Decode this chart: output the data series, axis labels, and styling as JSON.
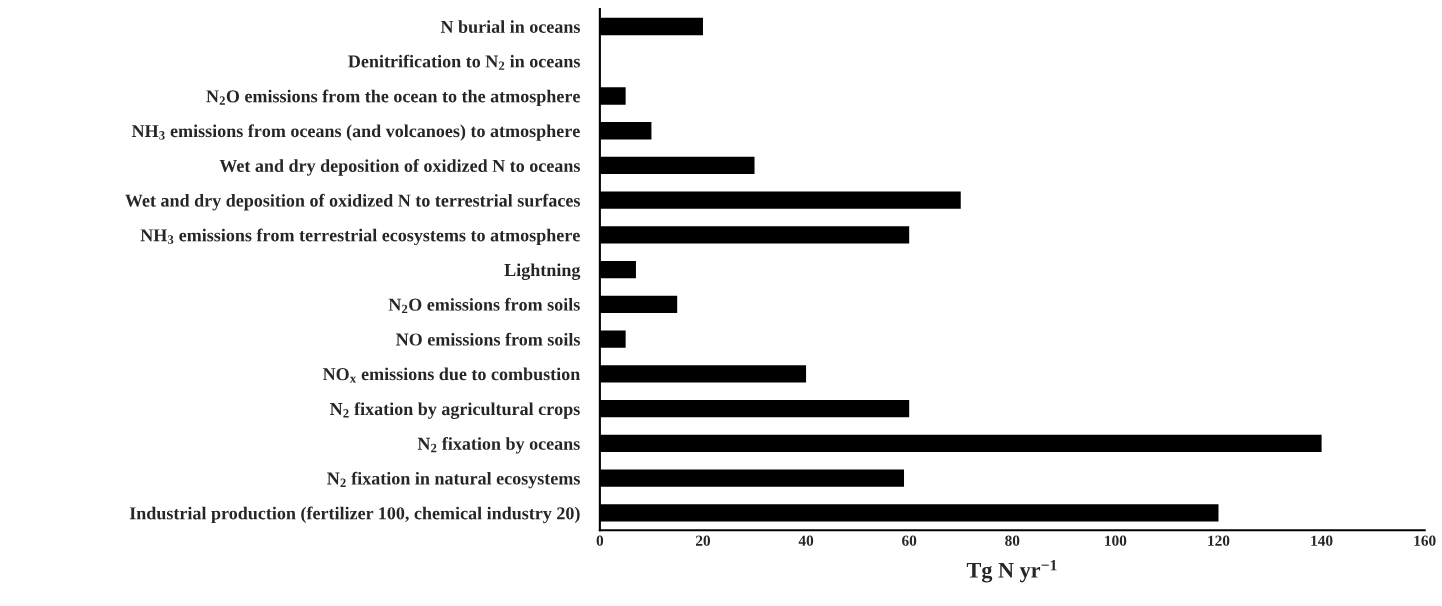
{
  "chart_data": {
    "type": "bar",
    "orientation": "horizontal",
    "xlabel": "Tg N yr$^{−1}$",
    "categories": [
      "N burial in oceans",
      "Denitrification to N$_{2}$ in oceans",
      "N$_{2}$O emissions from the ocean to the atmosphere",
      "NH$_{3}$ emissions from oceans (and volcanoes) to atmosphere",
      "Wet and dry deposition of oxidized N to oceans",
      "Wet and dry deposition of oxidized N to terrestrial surfaces",
      "NH$_{3}$ emissions from terrestrial ecosystems to atmosphere",
      "Lightning",
      "N$_{2}$O emissions from soils",
      "NO emissions from soils",
      "NO$_{x}$ emissions due to combustion",
      "N$_{2}$ fixation by agricultural crops",
      "N$_{2}$ fixation by oceans",
      "N$_{2}$ fixation in natural ecosystems",
      "Industrial production (fertilizer 100, chemical industry 20)"
    ],
    "values": [
      20,
      null,
      5,
      10,
      30,
      70,
      60,
      7,
      15,
      5,
      40,
      60,
      140,
      59,
      120
    ],
    "color": "#000000",
    "xlim": [
      0,
      160
    ],
    "xticks": [
      0,
      20,
      40,
      60,
      80,
      100,
      120,
      140,
      160
    ],
    "grid": false,
    "legend": false
  }
}
